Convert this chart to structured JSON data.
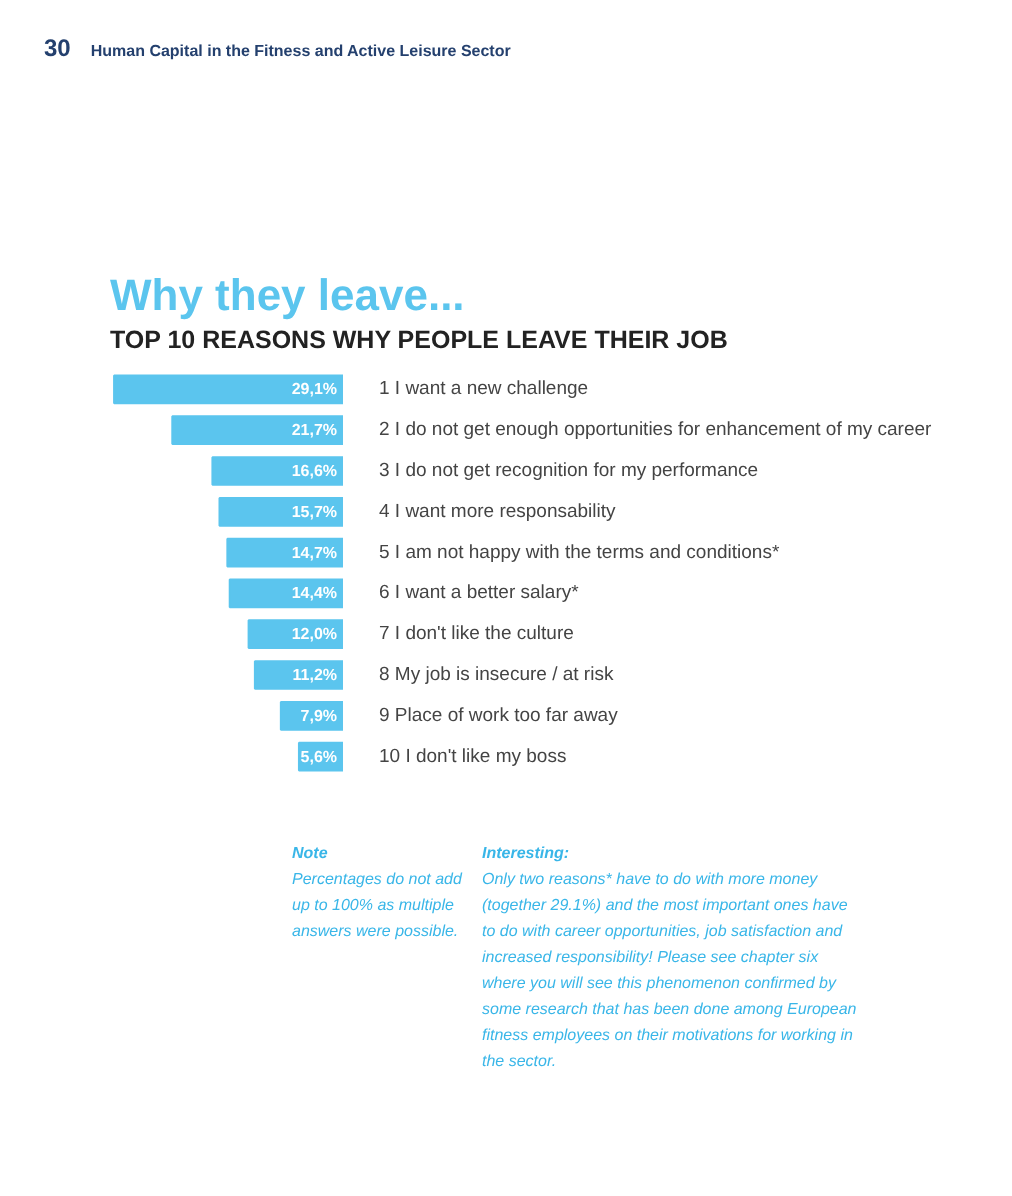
{
  "chart_data": {
    "type": "bar",
    "orientation": "horizontal",
    "title": "Why they leave...",
    "subtitle": "TOP 10 REASONS WHY PEOPLE LEAVE THEIR JOB",
    "categories": [
      "1 I want a new challenge",
      "2 I do not get enough opportunities for enhancement of my career",
      "3 I do not get recognition for my performance",
      "4 I want more responsability",
      "5 I am not happy with the terms and conditions*",
      "6 I want a better salary*",
      "7 I don't like the culture",
      "8 My job is insecure / at risk",
      "9 Place of work too far away",
      "10 I don't like my boss"
    ],
    "values": [
      29.1,
      21.7,
      16.6,
      15.7,
      14.7,
      14.4,
      12.0,
      11.2,
      7.9,
      5.6
    ],
    "value_labels": [
      "29,1%",
      "21,7%",
      "16,6%",
      "15,7%",
      "14,7%",
      "14,4%",
      "12,0%",
      "11,2%",
      "7,9%",
      "5,6%"
    ],
    "color": "#5bc5ee",
    "xlim": [
      30,
      0
    ],
    "tick_labels": "y",
    "grid": false,
    "annotations": [
      "30",
      "Human Capital in the Fitness and Active Leisure Sector",
      "Note",
      "Percentages do not add up to 100% as multiple answers were possible.",
      "Interesting:",
      "Only two reasons* have to do with more money (together 29.1%) and the most important ones have to do with career opportunities, job satisfaction and increased responsibility! Please see chapter six where you will see this phenomenon confirmed by some research that has been done among European fitness employees on their motivations for working in the sector."
    ]
  }
}
